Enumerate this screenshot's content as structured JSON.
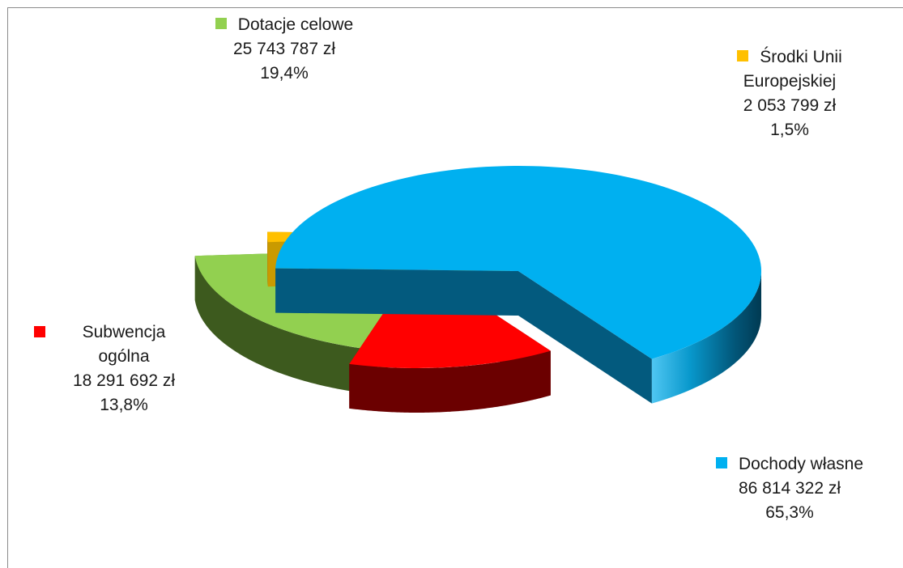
{
  "chart_data": {
    "type": "pie",
    "three_d": true,
    "title": "",
    "slices": [
      {
        "name": "Dochody własne",
        "value": 86814322,
        "amount": "86 814 322 zł",
        "percent": "65,3%",
        "color": "#00b0f0",
        "exploded": true
      },
      {
        "name": "Subwencja ogólna",
        "value": 18291692,
        "amount": "18 291 692 zł",
        "percent": "13,8%",
        "color": "#ff0000",
        "exploded": true
      },
      {
        "name": "Dotacje celowe",
        "value": 25743787,
        "amount": "25 743 787 zł",
        "percent": "19,4%",
        "color": "#92d050",
        "exploded": true
      },
      {
        "name": "Środki Unii Europejskiej",
        "value": 2053799,
        "amount": "2 053 799 zł",
        "percent": "1,5%",
        "color": "#ffc000",
        "exploded": true
      }
    ]
  },
  "labels": {
    "dotacje": {
      "l1": "Dotacje celowe",
      "l2": "25 743 787 zł",
      "l3": "19,4%"
    },
    "unia": {
      "l1": "Środki Unii",
      "l2": "Europejskiej",
      "l3": "2 053 799 zł",
      "l4": "1,5%"
    },
    "subwencja": {
      "l1": "Subwencja",
      "l2": "ogólna",
      "l3": "18 291 692 zł",
      "l4": "13,8%"
    },
    "dochody": {
      "l1": "Dochody własne",
      "l2": "86 814 322 zł",
      "l3": "65,3%"
    }
  }
}
